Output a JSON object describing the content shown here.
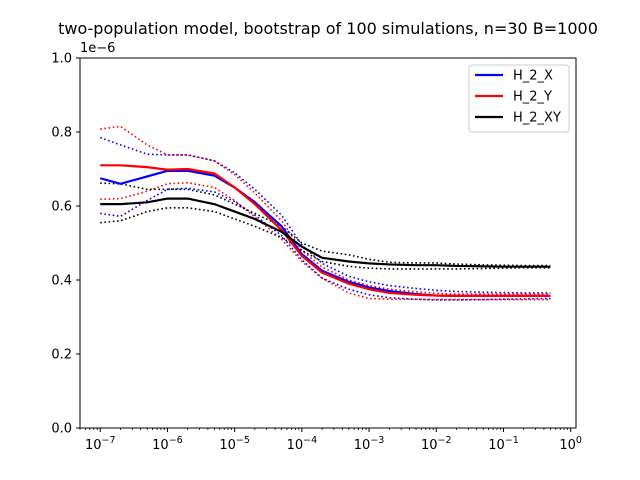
{
  "chart_data": {
    "type": "line",
    "title": "two-population model, bootstrap of 100 simulations, n=30 B=1000",
    "x_scale": "log",
    "xlim": [
      5e-08,
      1.2
    ],
    "ylim": [
      0,
      1e-06
    ],
    "y_offset_label": "1e−6",
    "y_ticks": [
      0,
      2e-07,
      4e-07,
      6e-07,
      8e-07,
      1e-06
    ],
    "y_tick_labels": [
      "0.0",
      "0.2",
      "0.4",
      "0.6",
      "0.8",
      "1.0"
    ],
    "x_ticks": [
      1e-07,
      1e-06,
      1e-05,
      0.0001,
      0.001,
      0.01,
      0.1,
      1
    ],
    "x_tick_labels": [
      {
        "base": "10",
        "exp": "−7"
      },
      {
        "base": "10",
        "exp": "−6"
      },
      {
        "base": "10",
        "exp": "−5"
      },
      {
        "base": "10",
        "exp": "−4"
      },
      {
        "base": "10",
        "exp": "−3"
      },
      {
        "base": "10",
        "exp": "−2"
      },
      {
        "base": "10",
        "exp": "−1"
      },
      {
        "base": "10",
        "exp": "0"
      }
    ],
    "grid": false,
    "legend_position": "top-right",
    "x": [
      1e-07,
      2e-07,
      5e-07,
      1e-06,
      2e-06,
      5e-06,
      1e-05,
      2e-05,
      5e-05,
      0.0001,
      0.0002,
      0.0005,
      0.001,
      0.002,
      0.005,
      0.01,
      0.02,
      0.05,
      0.1,
      0.2,
      0.5
    ],
    "series": [
      {
        "name": "H_2_X",
        "color": "#0000ff",
        "values": [
          6.75e-07,
          6.6e-07,
          6.8e-07,
          6.95e-07,
          6.95e-07,
          6.82e-07,
          6.5e-07,
          6.1e-07,
          5.45e-07,
          4.7e-07,
          4.25e-07,
          3.95e-07,
          3.8e-07,
          3.7e-07,
          3.62e-07,
          3.58e-07,
          3.57e-07,
          3.57e-07,
          3.57e-07,
          3.57e-07,
          3.57e-07
        ],
        "lower": [
          5.8e-07,
          5.72e-07,
          6.15e-07,
          6.45e-07,
          6.48e-07,
          6.38e-07,
          6.12e-07,
          5.75e-07,
          5.2e-07,
          4.55e-07,
          4.05e-07,
          3.75e-07,
          3.6e-07,
          3.52e-07,
          3.48e-07,
          3.46e-07,
          3.46e-07,
          3.47e-07,
          3.48e-07,
          3.49e-07,
          3.5e-07
        ],
        "upper": [
          7.85e-07,
          7.65e-07,
          7.4e-07,
          7.38e-07,
          7.38e-07,
          7.22e-07,
          6.9e-07,
          6.45e-07,
          5.75e-07,
          4.95e-07,
          4.45e-07,
          4.1e-07,
          3.95e-07,
          3.85e-07,
          3.77e-07,
          3.72e-07,
          3.69e-07,
          3.67e-07,
          3.66e-07,
          3.65e-07,
          3.65e-07
        ]
      },
      {
        "name": "H_2_Y",
        "color": "#ff0000",
        "values": [
          7.1e-07,
          7.1e-07,
          7.05e-07,
          6.98e-07,
          7e-07,
          6.88e-07,
          6.5e-07,
          6.05e-07,
          5.35e-07,
          4.65e-07,
          4.2e-07,
          3.9e-07,
          3.75e-07,
          3.65e-07,
          3.6e-07,
          3.58e-07,
          3.57e-07,
          3.57e-07,
          3.57e-07,
          3.57e-07,
          3.57e-07
        ],
        "lower": [
          6.18e-07,
          6.2e-07,
          6.4e-07,
          6.6e-07,
          6.63e-07,
          6.5e-07,
          6.15e-07,
          5.7e-07,
          5.1e-07,
          4.5e-07,
          4.05e-07,
          3.65e-07,
          3.5e-07,
          3.48e-07,
          3.48e-07,
          3.47e-07,
          3.47e-07,
          3.47e-07,
          3.47e-07,
          3.47e-07,
          3.47e-07
        ],
        "upper": [
          8.08e-07,
          8.15e-07,
          7.65e-07,
          7.38e-07,
          7.38e-07,
          7.22e-07,
          6.85e-07,
          6.35e-07,
          5.6e-07,
          4.8e-07,
          4.35e-07,
          4e-07,
          3.85e-07,
          3.75e-07,
          3.68e-07,
          3.64e-07,
          3.62e-07,
          3.62e-07,
          3.62e-07,
          3.62e-07,
          3.62e-07
        ]
      },
      {
        "name": "H_2_XY",
        "color": "#000000",
        "values": [
          6.05e-07,
          6.05e-07,
          6.1e-07,
          6.2e-07,
          6.2e-07,
          6.05e-07,
          5.85e-07,
          5.65e-07,
          5.3e-07,
          4.9e-07,
          4.6e-07,
          4.5e-07,
          4.45e-07,
          4.42e-07,
          4.4e-07,
          4.4e-07,
          4.38e-07,
          4.37e-07,
          4.36e-07,
          4.36e-07,
          4.36e-07
        ],
        "lower": [
          5.55e-07,
          5.6e-07,
          5.85e-07,
          5.95e-07,
          5.95e-07,
          5.85e-07,
          5.65e-07,
          5.45e-07,
          5.15e-07,
          4.8e-07,
          4.5e-07,
          4.37e-07,
          4.32e-07,
          4.3e-07,
          4.3e-07,
          4.3e-07,
          4.3e-07,
          4.31e-07,
          4.32e-07,
          4.33e-07,
          4.33e-07
        ],
        "upper": [
          6.62e-07,
          6.6e-07,
          6.45e-07,
          6.45e-07,
          6.45e-07,
          6.3e-07,
          6.05e-07,
          5.8e-07,
          5.45e-07,
          5e-07,
          4.78e-07,
          4.68e-07,
          4.56e-07,
          4.48e-07,
          4.46e-07,
          4.46e-07,
          4.43e-07,
          4.41e-07,
          4.4e-07,
          4.39e-07,
          4.39e-07
        ]
      }
    ]
  }
}
